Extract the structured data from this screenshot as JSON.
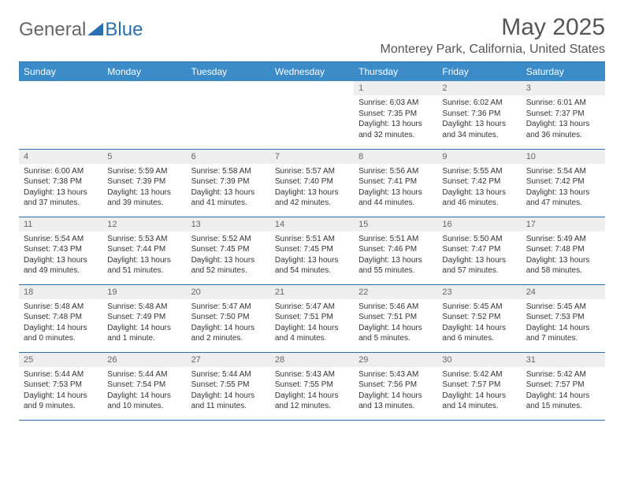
{
  "brand": {
    "text1": "General",
    "text2": "Blue",
    "triangle_color": "#2a6fb0"
  },
  "header": {
    "month_title": "May 2025",
    "location": "Monterey Park, California, United States"
  },
  "style": {
    "header_bg": "#3b8bc9",
    "header_text": "#ffffff",
    "row_divider": "#2a6fb0",
    "daynum_bg": "#eeeeee",
    "page_bg": "#ffffff",
    "body_font_size": 10,
    "daynum_font_size": 11,
    "th_font_size": 12,
    "title_font_size": 30,
    "location_font_size": 16
  },
  "weekdays": [
    "Sunday",
    "Monday",
    "Tuesday",
    "Wednesday",
    "Thursday",
    "Friday",
    "Saturday"
  ],
  "weeks": [
    [
      {
        "empty": true
      },
      {
        "empty": true
      },
      {
        "empty": true
      },
      {
        "empty": true
      },
      {
        "n": "1",
        "sr": "Sunrise: 6:03 AM",
        "ss": "Sunset: 7:35 PM",
        "dl": "Daylight: 13 hours and 32 minutes."
      },
      {
        "n": "2",
        "sr": "Sunrise: 6:02 AM",
        "ss": "Sunset: 7:36 PM",
        "dl": "Daylight: 13 hours and 34 minutes."
      },
      {
        "n": "3",
        "sr": "Sunrise: 6:01 AM",
        "ss": "Sunset: 7:37 PM",
        "dl": "Daylight: 13 hours and 36 minutes."
      }
    ],
    [
      {
        "n": "4",
        "sr": "Sunrise: 6:00 AM",
        "ss": "Sunset: 7:38 PM",
        "dl": "Daylight: 13 hours and 37 minutes."
      },
      {
        "n": "5",
        "sr": "Sunrise: 5:59 AM",
        "ss": "Sunset: 7:39 PM",
        "dl": "Daylight: 13 hours and 39 minutes."
      },
      {
        "n": "6",
        "sr": "Sunrise: 5:58 AM",
        "ss": "Sunset: 7:39 PM",
        "dl": "Daylight: 13 hours and 41 minutes."
      },
      {
        "n": "7",
        "sr": "Sunrise: 5:57 AM",
        "ss": "Sunset: 7:40 PM",
        "dl": "Daylight: 13 hours and 42 minutes."
      },
      {
        "n": "8",
        "sr": "Sunrise: 5:56 AM",
        "ss": "Sunset: 7:41 PM",
        "dl": "Daylight: 13 hours and 44 minutes."
      },
      {
        "n": "9",
        "sr": "Sunrise: 5:55 AM",
        "ss": "Sunset: 7:42 PM",
        "dl": "Daylight: 13 hours and 46 minutes."
      },
      {
        "n": "10",
        "sr": "Sunrise: 5:54 AM",
        "ss": "Sunset: 7:42 PM",
        "dl": "Daylight: 13 hours and 47 minutes."
      }
    ],
    [
      {
        "n": "11",
        "sr": "Sunrise: 5:54 AM",
        "ss": "Sunset: 7:43 PM",
        "dl": "Daylight: 13 hours and 49 minutes."
      },
      {
        "n": "12",
        "sr": "Sunrise: 5:53 AM",
        "ss": "Sunset: 7:44 PM",
        "dl": "Daylight: 13 hours and 51 minutes."
      },
      {
        "n": "13",
        "sr": "Sunrise: 5:52 AM",
        "ss": "Sunset: 7:45 PM",
        "dl": "Daylight: 13 hours and 52 minutes."
      },
      {
        "n": "14",
        "sr": "Sunrise: 5:51 AM",
        "ss": "Sunset: 7:45 PM",
        "dl": "Daylight: 13 hours and 54 minutes."
      },
      {
        "n": "15",
        "sr": "Sunrise: 5:51 AM",
        "ss": "Sunset: 7:46 PM",
        "dl": "Daylight: 13 hours and 55 minutes."
      },
      {
        "n": "16",
        "sr": "Sunrise: 5:50 AM",
        "ss": "Sunset: 7:47 PM",
        "dl": "Daylight: 13 hours and 57 minutes."
      },
      {
        "n": "17",
        "sr": "Sunrise: 5:49 AM",
        "ss": "Sunset: 7:48 PM",
        "dl": "Daylight: 13 hours and 58 minutes."
      }
    ],
    [
      {
        "n": "18",
        "sr": "Sunrise: 5:48 AM",
        "ss": "Sunset: 7:48 PM",
        "dl": "Daylight: 14 hours and 0 minutes."
      },
      {
        "n": "19",
        "sr": "Sunrise: 5:48 AM",
        "ss": "Sunset: 7:49 PM",
        "dl": "Daylight: 14 hours and 1 minute."
      },
      {
        "n": "20",
        "sr": "Sunrise: 5:47 AM",
        "ss": "Sunset: 7:50 PM",
        "dl": "Daylight: 14 hours and 2 minutes."
      },
      {
        "n": "21",
        "sr": "Sunrise: 5:47 AM",
        "ss": "Sunset: 7:51 PM",
        "dl": "Daylight: 14 hours and 4 minutes."
      },
      {
        "n": "22",
        "sr": "Sunrise: 5:46 AM",
        "ss": "Sunset: 7:51 PM",
        "dl": "Daylight: 14 hours and 5 minutes."
      },
      {
        "n": "23",
        "sr": "Sunrise: 5:45 AM",
        "ss": "Sunset: 7:52 PM",
        "dl": "Daylight: 14 hours and 6 minutes."
      },
      {
        "n": "24",
        "sr": "Sunrise: 5:45 AM",
        "ss": "Sunset: 7:53 PM",
        "dl": "Daylight: 14 hours and 7 minutes."
      }
    ],
    [
      {
        "n": "25",
        "sr": "Sunrise: 5:44 AM",
        "ss": "Sunset: 7:53 PM",
        "dl": "Daylight: 14 hours and 9 minutes."
      },
      {
        "n": "26",
        "sr": "Sunrise: 5:44 AM",
        "ss": "Sunset: 7:54 PM",
        "dl": "Daylight: 14 hours and 10 minutes."
      },
      {
        "n": "27",
        "sr": "Sunrise: 5:44 AM",
        "ss": "Sunset: 7:55 PM",
        "dl": "Daylight: 14 hours and 11 minutes."
      },
      {
        "n": "28",
        "sr": "Sunrise: 5:43 AM",
        "ss": "Sunset: 7:55 PM",
        "dl": "Daylight: 14 hours and 12 minutes."
      },
      {
        "n": "29",
        "sr": "Sunrise: 5:43 AM",
        "ss": "Sunset: 7:56 PM",
        "dl": "Daylight: 14 hours and 13 minutes."
      },
      {
        "n": "30",
        "sr": "Sunrise: 5:42 AM",
        "ss": "Sunset: 7:57 PM",
        "dl": "Daylight: 14 hours and 14 minutes."
      },
      {
        "n": "31",
        "sr": "Sunrise: 5:42 AM",
        "ss": "Sunset: 7:57 PM",
        "dl": "Daylight: 14 hours and 15 minutes."
      }
    ]
  ]
}
